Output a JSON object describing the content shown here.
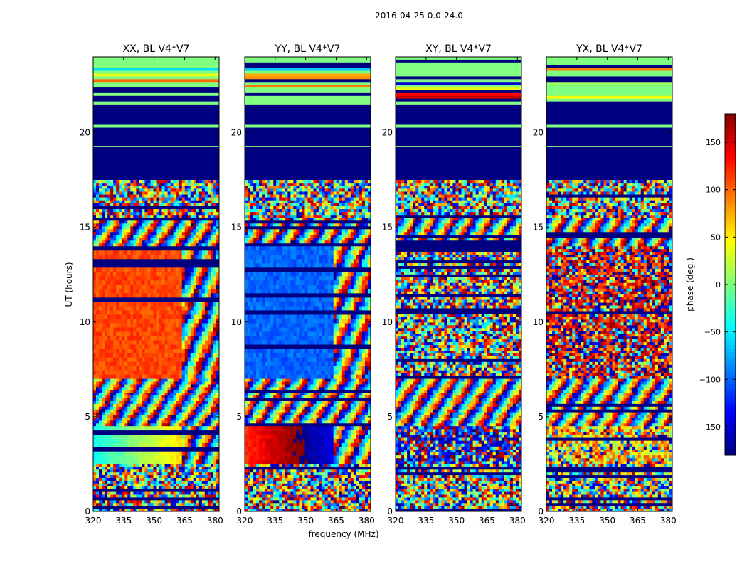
{
  "chart_data": {
    "type": "heatmap",
    "title": "2016-04-25 0.0-24.0",
    "xlabel": "frequency (MHz)",
    "ylabel": "UT (hours)",
    "xlim": [
      320,
      382
    ],
    "ylim": [
      0,
      24
    ],
    "x_ticks": [
      320,
      335,
      350,
      365,
      380
    ],
    "y_ticks": [
      0,
      5,
      10,
      15,
      20
    ],
    "colorbar": {
      "label": "phase (deg.)",
      "range": [
        -180,
        180
      ],
      "ticks": [
        150,
        100,
        50,
        0,
        -50,
        -100,
        -150
      ],
      "tick_labels": [
        "150",
        "100",
        "50",
        "0",
        "−50",
        "−100",
        "−150"
      ],
      "colormap": "jet"
    },
    "panels": [
      {
        "title": "XX, BL V4*V7",
        "base_phase": 0,
        "row_seed": 11,
        "bands": [
          {
            "t0": 17.5,
            "t1": 21.5,
            "mode": "flagged"
          },
          {
            "t0": 21.5,
            "t1": 24.0,
            "mode": "striped"
          },
          {
            "t0": 15.5,
            "t1": 17.5,
            "mode": "noisy"
          },
          {
            "t0": 14.0,
            "t1": 15.5,
            "mode": "fringe"
          },
          {
            "t0": 7.0,
            "t1": 14.0,
            "mode": "uniform",
            "phase": 110,
            "split": 363
          },
          {
            "t0": 4.5,
            "t1": 7.0,
            "mode": "fringe"
          },
          {
            "t0": 2.5,
            "t1": 4.5,
            "mode": "gradient",
            "phase": -40,
            "split": 363
          },
          {
            "t0": 0.0,
            "t1": 2.5,
            "mode": "noisy"
          }
        ]
      },
      {
        "title": "YY, BL V4*V7",
        "base_phase": 0,
        "row_seed": 23,
        "bands": [
          {
            "t0": 17.5,
            "t1": 21.5,
            "mode": "flagged"
          },
          {
            "t0": 21.5,
            "t1": 24.0,
            "mode": "striped"
          },
          {
            "t0": 15.5,
            "t1": 17.5,
            "mode": "noisy"
          },
          {
            "t0": 14.0,
            "t1": 15.5,
            "mode": "fringe"
          },
          {
            "t0": 7.0,
            "t1": 14.0,
            "mode": "uniform",
            "phase": -100,
            "split": 363
          },
          {
            "t0": 4.5,
            "t1": 7.0,
            "mode": "fringe"
          },
          {
            "t0": 2.5,
            "t1": 4.5,
            "mode": "gradient",
            "phase": 120,
            "split": 363
          },
          {
            "t0": 0.0,
            "t1": 2.5,
            "mode": "noisy"
          }
        ]
      },
      {
        "title": "XY, BL V4*V7",
        "base_phase": 0,
        "row_seed": 37,
        "bands": [
          {
            "t0": 17.5,
            "t1": 21.5,
            "mode": "flagged"
          },
          {
            "t0": 21.5,
            "t1": 24.0,
            "mode": "striped"
          },
          {
            "t0": 15.5,
            "t1": 17.5,
            "mode": "noisy"
          },
          {
            "t0": 14.0,
            "t1": 15.5,
            "mode": "fringe"
          },
          {
            "t0": 7.0,
            "t1": 14.0,
            "mode": "noisy"
          },
          {
            "t0": 4.5,
            "t1": 7.0,
            "mode": "fringe"
          },
          {
            "t0": 2.5,
            "t1": 4.5,
            "mode": "noisy",
            "phase": -150
          },
          {
            "t0": 0.0,
            "t1": 2.5,
            "mode": "noisy"
          }
        ]
      },
      {
        "title": "YX, BL V4*V7",
        "base_phase": 0,
        "row_seed": 53,
        "bands": [
          {
            "t0": 17.5,
            "t1": 21.5,
            "mode": "flagged"
          },
          {
            "t0": 21.5,
            "t1": 24.0,
            "mode": "striped"
          },
          {
            "t0": 15.5,
            "t1": 17.5,
            "mode": "noisy"
          },
          {
            "t0": 14.0,
            "t1": 15.5,
            "mode": "fringe"
          },
          {
            "t0": 7.0,
            "t1": 14.0,
            "mode": "noisy",
            "phase": 150
          },
          {
            "t0": 4.5,
            "t1": 7.0,
            "mode": "fringe"
          },
          {
            "t0": 2.5,
            "t1": 4.5,
            "mode": "noisy",
            "phase": 60
          },
          {
            "t0": 0.0,
            "t1": 2.5,
            "mode": "noisy"
          }
        ]
      }
    ]
  }
}
